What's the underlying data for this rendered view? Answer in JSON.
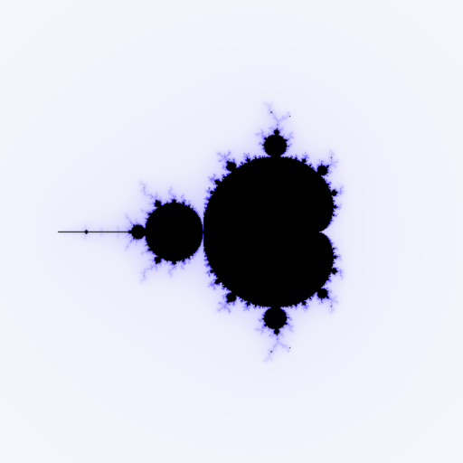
{
  "image": {
    "subject": "mandelbrot-set",
    "background_color": "#ffffff",
    "halo_color": "#ededfc",
    "set_color": "#000000",
    "boundary_color": "#3a2cff"
  }
}
